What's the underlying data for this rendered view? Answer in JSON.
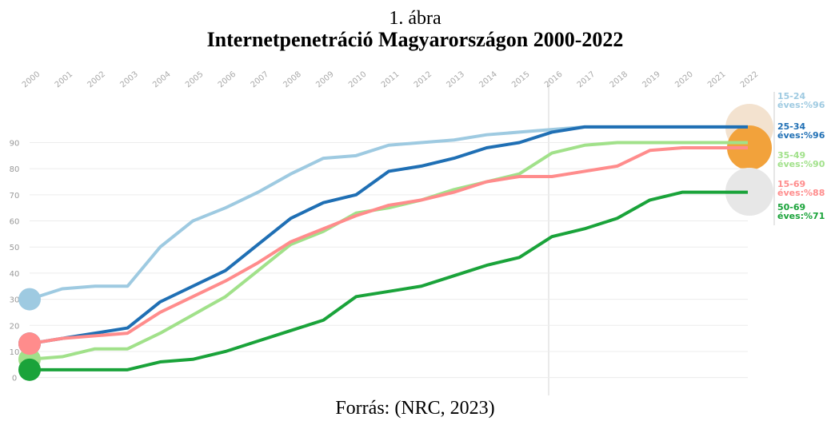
{
  "chart_data": {
    "type": "line",
    "figure_label": "1. ábra",
    "title": "Internetpenetráció Magyarországon 2000-2022",
    "source": "Forrás: (NRC, 2023)",
    "categories": [
      "2000",
      "2001",
      "2002",
      "2003",
      "2004",
      "2005",
      "2006",
      "2007",
      "2008",
      "2009",
      "2010",
      "2011",
      "2012",
      "2013",
      "2014",
      "2015",
      "2016",
      "2017",
      "2018",
      "2019",
      "2020",
      "2021",
      "2022"
    ],
    "ylim": [
      -5,
      103
    ],
    "yticks": [
      0,
      10,
      20,
      30,
      40,
      50,
      60,
      70,
      80,
      90
    ],
    "grid": true,
    "series": [
      {
        "name": "15-24",
        "end_label": "éves:%96",
        "color": "#9ecae1",
        "values": [
          30,
          34,
          35,
          35,
          50,
          60,
          65,
          71,
          78,
          84,
          85,
          89,
          90,
          91,
          93,
          94,
          95,
          96,
          96,
          96,
          96,
          96,
          96
        ]
      },
      {
        "name": "25-34",
        "end_label": "éves:%96",
        "color": "#1f6fb4",
        "values": [
          13,
          15,
          17,
          19,
          29,
          35,
          41,
          51,
          61,
          67,
          70,
          79,
          81,
          84,
          88,
          90,
          94,
          96,
          96,
          96,
          96,
          96,
          96
        ]
      },
      {
        "name": "35-49",
        "end_label": "éves:%90",
        "color": "#a1e18a",
        "values": [
          7,
          8,
          11,
          11,
          17,
          24,
          31,
          41,
          51,
          56,
          63,
          65,
          68,
          72,
          75,
          78,
          86,
          89,
          90,
          90,
          90,
          90,
          90
        ]
      },
      {
        "name": "15-69",
        "end_label": "éves:%88",
        "color": "#ff8c8c",
        "values": [
          13,
          15,
          16,
          17,
          25,
          31,
          37,
          44,
          52,
          57,
          62,
          66,
          68,
          71,
          75,
          77,
          77,
          79,
          81,
          87,
          88,
          88,
          88
        ]
      },
      {
        "name": "50-69",
        "end_label": "éves:%71",
        "color": "#1aa33a",
        "values": [
          3,
          3,
          3,
          3,
          6,
          7,
          10,
          14,
          18,
          22,
          31,
          33,
          35,
          39,
          43,
          46,
          54,
          57,
          61,
          68,
          71,
          71,
          71
        ]
      }
    ]
  }
}
